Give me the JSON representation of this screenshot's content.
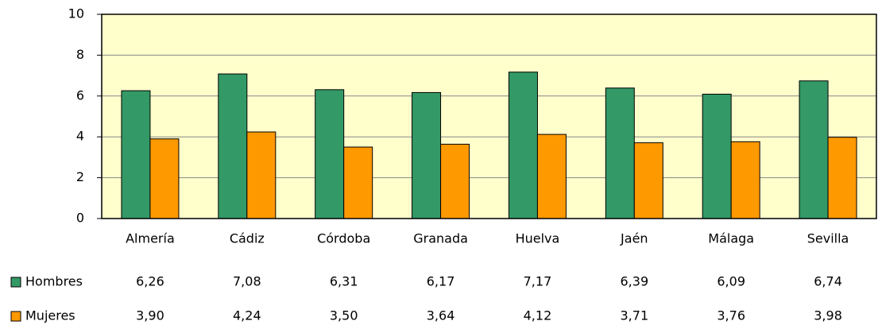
{
  "chart_data": {
    "type": "bar",
    "categories": [
      "Almería",
      "Cádiz",
      "Córdoba",
      "Granada",
      "Huelva",
      "Jaén",
      "Málaga",
      "Sevilla"
    ],
    "series": [
      {
        "name": "Hombres",
        "color": "#339966",
        "values": [
          6.26,
          7.08,
          6.31,
          6.17,
          7.17,
          6.39,
          6.09,
          6.74
        ],
        "value_labels": [
          "6,26",
          "7,08",
          "6,31",
          "6,17",
          "7,17",
          "6,39",
          "6,09",
          "6,74"
        ]
      },
      {
        "name": "Mujeres",
        "color": "#ff9900",
        "values": [
          3.9,
          4.24,
          3.5,
          3.64,
          4.12,
          3.71,
          3.76,
          3.98
        ],
        "value_labels": [
          "3,90",
          "4,24",
          "3,50",
          "3,64",
          "4,12",
          "3,71",
          "3,76",
          "3,98"
        ]
      }
    ],
    "ylim": [
      0,
      10
    ],
    "yticks": [
      0,
      2,
      4,
      6,
      8,
      10
    ],
    "grid": true,
    "plot_background": "#ffffcc"
  }
}
